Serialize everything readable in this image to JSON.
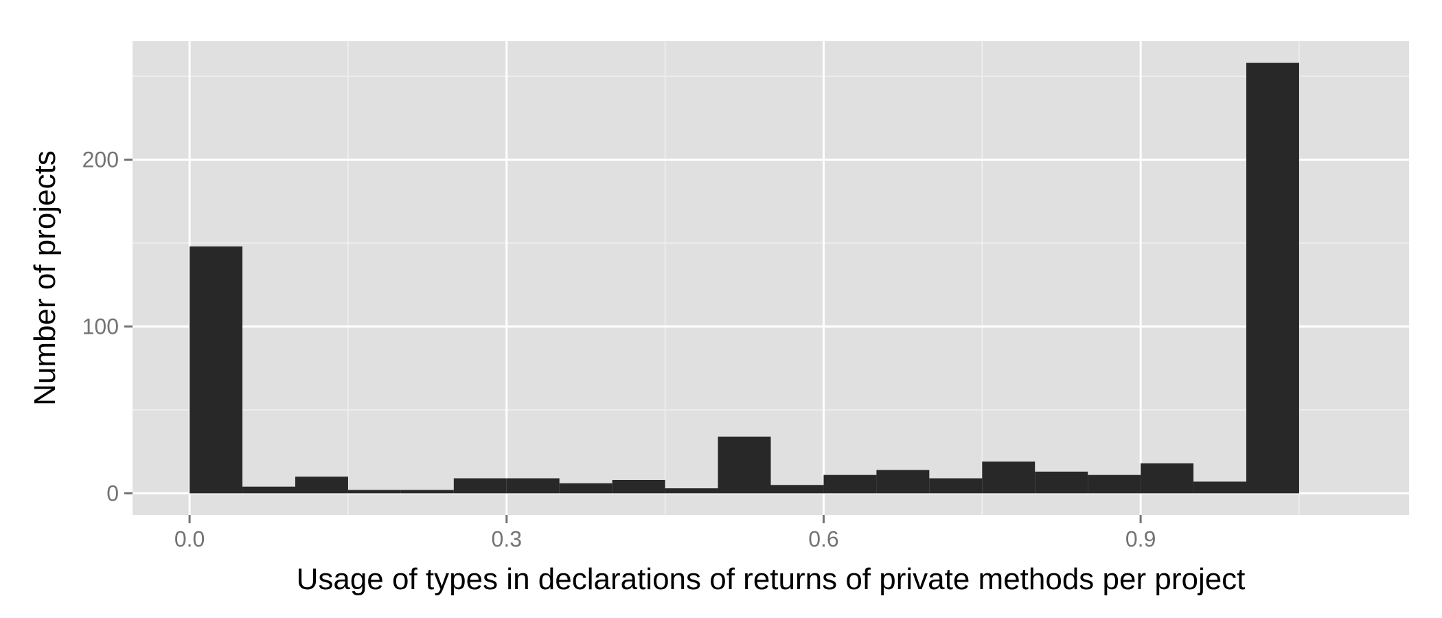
{
  "chart_data": {
    "type": "bar",
    "subtype": "histogram",
    "title": "",
    "xlabel": "Usage of types in declarations of returns of private methods per project",
    "ylabel": "Number of projects",
    "bin_width": 0.05,
    "bins": [
      {
        "start": 0.0,
        "end": 0.05,
        "count": 148
      },
      {
        "start": 0.05,
        "end": 0.1,
        "count": 4
      },
      {
        "start": 0.1,
        "end": 0.15,
        "count": 10
      },
      {
        "start": 0.15,
        "end": 0.2,
        "count": 2
      },
      {
        "start": 0.2,
        "end": 0.25,
        "count": 2
      },
      {
        "start": 0.25,
        "end": 0.3,
        "count": 9
      },
      {
        "start": 0.3,
        "end": 0.35,
        "count": 9
      },
      {
        "start": 0.35,
        "end": 0.4,
        "count": 6
      },
      {
        "start": 0.4,
        "end": 0.45,
        "count": 8
      },
      {
        "start": 0.45,
        "end": 0.5,
        "count": 3
      },
      {
        "start": 0.5,
        "end": 0.55,
        "count": 34
      },
      {
        "start": 0.55,
        "end": 0.6,
        "count": 5
      },
      {
        "start": 0.6,
        "end": 0.65,
        "count": 11
      },
      {
        "start": 0.65,
        "end": 0.7,
        "count": 14
      },
      {
        "start": 0.7,
        "end": 0.75,
        "count": 9
      },
      {
        "start": 0.75,
        "end": 0.8,
        "count": 19
      },
      {
        "start": 0.8,
        "end": 0.85,
        "count": 13
      },
      {
        "start": 0.85,
        "end": 0.9,
        "count": 11
      },
      {
        "start": 0.9,
        "end": 0.95,
        "count": 18
      },
      {
        "start": 0.95,
        "end": 1.0,
        "count": 7
      },
      {
        "start": 1.0,
        "end": 1.05,
        "count": 258
      }
    ],
    "xlim": [
      -0.054,
      1.154
    ],
    "ylim": [
      -13,
      271
    ],
    "xticks": [
      {
        "value": 0.0,
        "label": "0.0"
      },
      {
        "value": 0.3,
        "label": "0.3"
      },
      {
        "value": 0.6,
        "label": "0.6"
      },
      {
        "value": 0.9,
        "label": "0.9"
      }
    ],
    "yticks": [
      {
        "value": 0,
        "label": "0"
      },
      {
        "value": 100,
        "label": "100"
      },
      {
        "value": 200,
        "label": "200"
      }
    ],
    "x_minor_gridlines": [
      0.15,
      0.45,
      0.75,
      1.05
    ],
    "y_minor_gridlines": [
      50,
      150,
      250
    ],
    "grid": true,
    "legend": "none",
    "colors": {
      "panel_background": "#e0e0e0",
      "major_grid": "#ffffff",
      "minor_grid": "#f0f0f0",
      "bar_fill": "#282828",
      "tick_text": "#737373",
      "tick_mark": "#737373",
      "title_text": "#000000"
    }
  }
}
